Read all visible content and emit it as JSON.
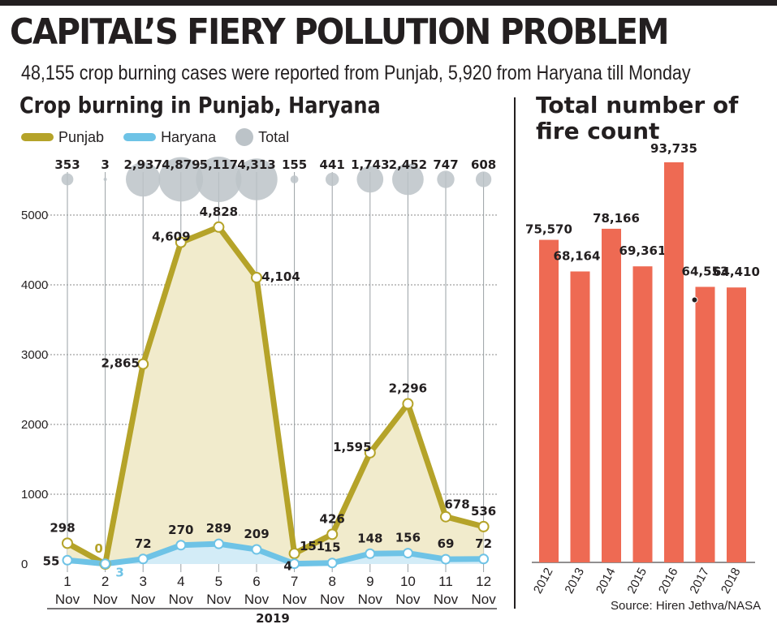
{
  "header": {
    "title": "CAPITAL’S FIERY POLLUTION PROBLEM",
    "subtitle": "48,155 crop burning cases were reported from Punjab, 5,920 from Haryana till Monday"
  },
  "colors": {
    "punjab": "#b5a329",
    "punjab_fill": "#f1ebcc",
    "haryana": "#6ec3e6",
    "haryana_fill": "#d3ecf7",
    "total": "#bcc3c8",
    "bars": "#ee6a53",
    "text": "#231f20"
  },
  "chart_data": [
    {
      "type": "line",
      "title": "Crop burning in Punjab, Haryana",
      "legend": [
        "Punjab",
        "Haryana",
        "Total"
      ],
      "legend_position": "top-left",
      "categories": [
        "1",
        "2",
        "3",
        "4",
        "5",
        "6",
        "7",
        "8",
        "9",
        "10",
        "11",
        "12"
      ],
      "category_unit": "Nov",
      "xlabel": "2019",
      "ylim": [
        0,
        5500
      ],
      "yticks": [
        0,
        1000,
        2000,
        3000,
        4000,
        5000
      ],
      "series": [
        {
          "name": "Punjab",
          "values": [
            298,
            0,
            2865,
            4609,
            4828,
            4104,
            151,
            426,
            1595,
            2296,
            678,
            536
          ],
          "labels": [
            "298",
            "0",
            "2,865",
            "4,609",
            "4,828",
            "4,104",
            "151",
            "426",
            "1,595",
            "2,296",
            "678",
            "536"
          ]
        },
        {
          "name": "Haryana",
          "values": [
            55,
            3,
            72,
            270,
            289,
            209,
            4,
            15,
            148,
            156,
            69,
            72
          ],
          "labels": [
            "55",
            "3",
            "72",
            "270",
            "289",
            "209",
            "4",
            "15",
            "148",
            "156",
            "69",
            "72"
          ]
        },
        {
          "name": "Total",
          "values": [
            353,
            3,
            2937,
            4879,
            5117,
            4313,
            155,
            441,
            1743,
            2452,
            747,
            608
          ],
          "labels": [
            "353",
            "3",
            "2,937",
            "4,879",
            "5,117",
            "4,313",
            "155",
            "441",
            "1,743",
            "2,452",
            "747",
            "608"
          ]
        }
      ]
    },
    {
      "type": "bar",
      "title": "Total number of fire count",
      "categories": [
        "2012",
        "2013",
        "2014",
        "2015",
        "2016",
        "2017",
        "2018"
      ],
      "values": [
        75570,
        68164,
        78166,
        69361,
        93735,
        64553,
        64410
      ],
      "labels": [
        "75,570",
        "68,164",
        "78,166",
        "69,361",
        "93,735",
        "64,553",
        "64,410"
      ]
    }
  ],
  "source": "Source: Hiren Jethva/NASA"
}
